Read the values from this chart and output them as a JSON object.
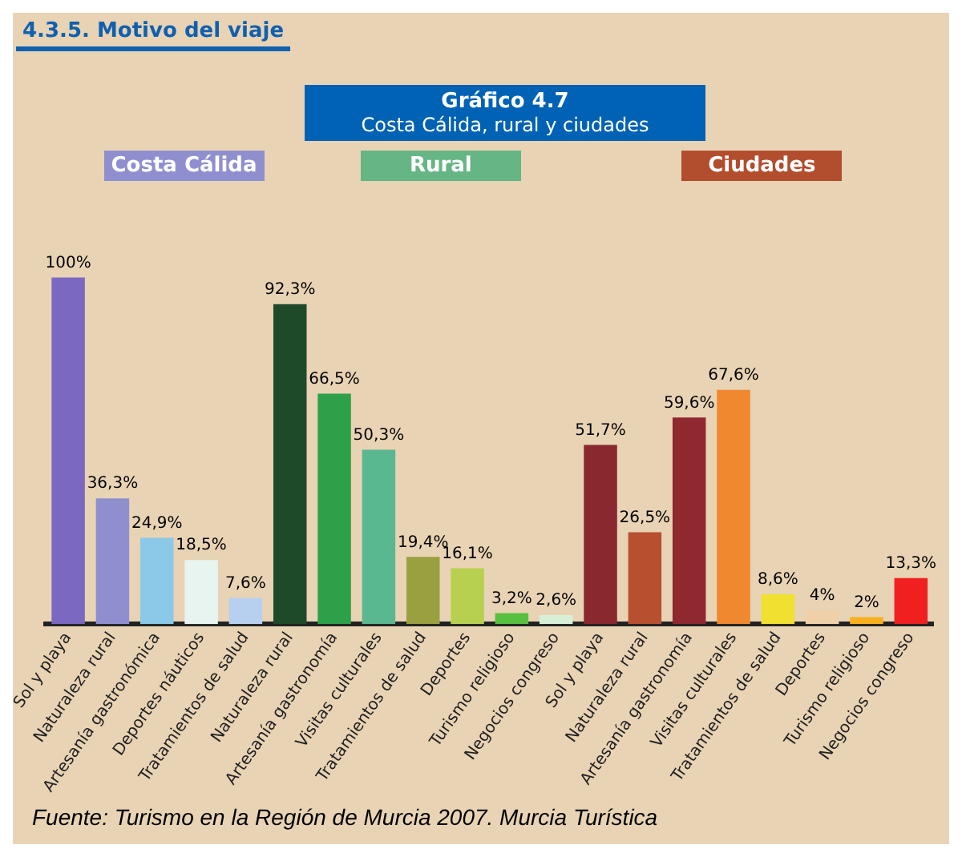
{
  "chart_data": {
    "type": "bar",
    "title": "Gráfico 4.7",
    "subtitle": "Costa Cálida, rural y ciudades",
    "categories": [
      "Sol y playa",
      "Naturaleza rural",
      "Artesanía gastronómica",
      "Deportes náuticos",
      "Tratamientos de salud",
      "Naturaleza rural",
      "Artesanía gastronomía",
      "Visitas culturales",
      "Tratamientos de salud",
      "Deportes",
      "Turismo religioso",
      "Negocios congreso",
      "Sol y playa",
      "Naturaleza rural",
      "Artesanía gastronomía",
      "Visitas culturales",
      "Tratamientos de salud",
      "Deportes",
      "Turismo religioso",
      "Negocios congreso"
    ],
    "series": [
      {
        "name": "Costa Cálida",
        "color": "#8f8fd0",
        "colors": [
          "#7b68c0",
          "#8f8fd0",
          "#8cc8e8",
          "#e8f4f0",
          "#b8d0f0",
          null,
          null,
          null,
          null,
          null,
          null,
          null,
          null,
          null,
          null,
          null,
          null,
          null,
          null,
          null
        ],
        "values": [
          100,
          36.3,
          24.9,
          18.5,
          7.6,
          null,
          null,
          null,
          null,
          null,
          null,
          null,
          null,
          null,
          null,
          null,
          null,
          null,
          null,
          null
        ],
        "value_labels": [
          "100%",
          "36,3%",
          "24,9%",
          "18,5%",
          "7,6%",
          null,
          null,
          null,
          null,
          null,
          null,
          null,
          null,
          null,
          null,
          null,
          null,
          null,
          null,
          null
        ]
      },
      {
        "name": "Rural",
        "color": "#66b585",
        "colors": [
          null,
          null,
          null,
          null,
          null,
          "#1e4a2a",
          "#2ea04a",
          "#5ab890",
          "#9aa040",
          "#b8d050",
          "#58c040",
          "#d8f0d8",
          null,
          null,
          null,
          null,
          null,
          null,
          null,
          null
        ],
        "values": [
          null,
          null,
          null,
          null,
          null,
          92.3,
          66.5,
          50.3,
          19.4,
          16.1,
          3.2,
          2.6,
          null,
          null,
          null,
          null,
          null,
          null,
          null,
          null
        ],
        "value_labels": [
          null,
          null,
          null,
          null,
          null,
          "92,3%",
          "66,5%",
          "50,3%",
          "19,4%",
          "16,1%",
          "3,2%",
          "2,6%",
          null,
          null,
          null,
          null,
          null,
          null,
          null,
          null
        ]
      },
      {
        "name": "Ciudades",
        "color": "#b24d2e",
        "colors": [
          null,
          null,
          null,
          null,
          null,
          null,
          null,
          null,
          null,
          null,
          null,
          null,
          "#8a2830",
          "#b85030",
          "#902830",
          "#f08830",
          "#f0e030",
          "#f0d0a8",
          "#f8b020",
          "#f02020"
        ],
        "values": [
          null,
          null,
          null,
          null,
          null,
          null,
          null,
          null,
          null,
          null,
          null,
          null,
          51.7,
          26.5,
          59.6,
          67.6,
          8.6,
          4,
          2,
          13.3
        ],
        "value_labels": [
          null,
          null,
          null,
          null,
          null,
          null,
          null,
          null,
          null,
          null,
          null,
          null,
          "51,7%",
          "26,5%",
          "59,6%",
          "67,6%",
          "8,6%",
          "4%",
          "2%",
          "13,3%"
        ]
      }
    ],
    "legend": "top",
    "grid": false,
    "annotations": [
      "4.3.5. Motivo del viaje",
      "Fuente: Turismo en la Región de Murcia 2007. Murcia Turística"
    ]
  }
}
